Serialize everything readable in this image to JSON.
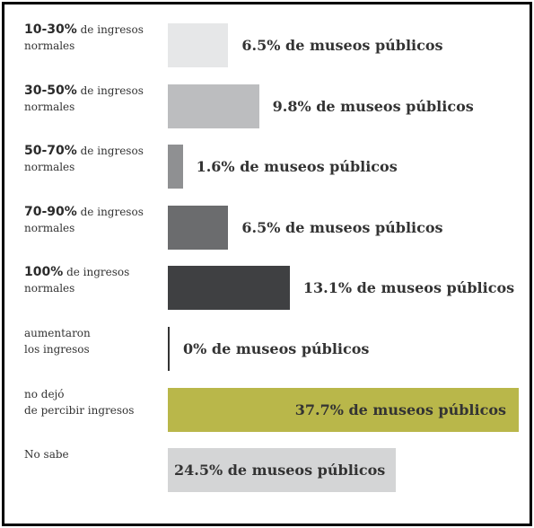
{
  "chart_data": {
    "type": "bar",
    "orientation": "horizontal",
    "categories": [
      "10-30% de ingresos\nnormales",
      "30-50% de ingresos\nnormales",
      "50-70% de ingresos\nnormales",
      "70-90% de ingresos\nnormales",
      "100% de ingresos\nnormales",
      "aumentaron\nlos ingresos",
      "no dejó\nde percibir ingresos",
      "No sabe"
    ],
    "values": [
      6.5,
      9.8,
      1.6,
      6.5,
      13.1,
      0,
      37.7,
      24.5
    ],
    "value_labels": [
      "6.5% de museos públicos",
      "9.8% de museos públicos",
      "1.6% de museos públicos",
      "6.5% de museos públicos",
      "13.1% de museos públicos",
      "0% de museos públicos",
      "37.7% de museos públicos",
      "24.5% de museos públicos"
    ],
    "colors": [
      "#e6e7e8",
      "#bcbdbf",
      "#8f9092",
      "#6b6c6e",
      "#3f4042",
      "#333333",
      "#b9b74a",
      "#d4d5d6"
    ]
  }
}
